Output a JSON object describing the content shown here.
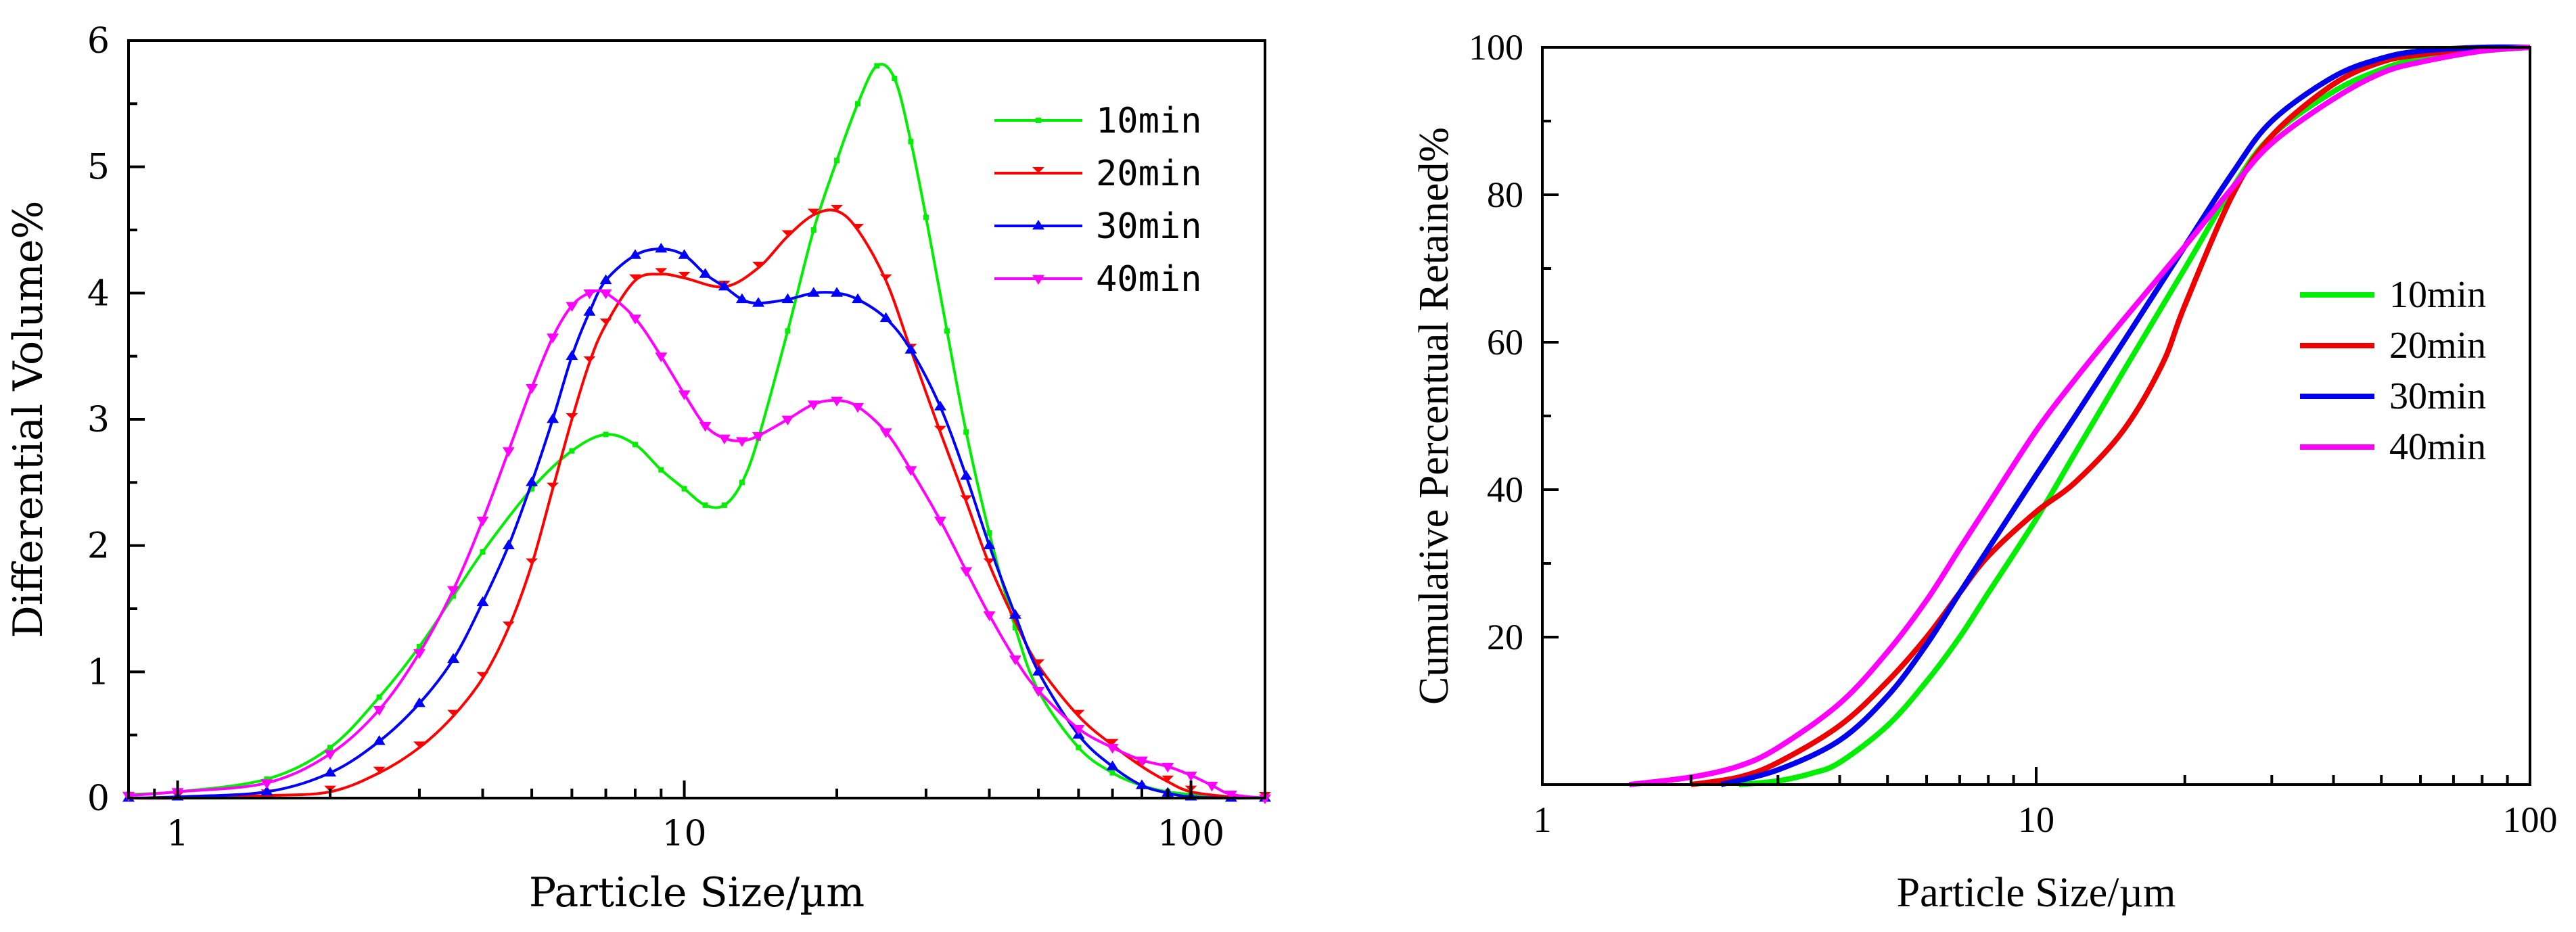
{
  "chart_data": [
    {
      "type": "line",
      "title": "",
      "xlabel": "Particle Size/µm",
      "ylabel": "Differential Volume%",
      "xscale": "log",
      "xlim": [
        0.8,
        140
      ],
      "ylim": [
        0,
        6
      ],
      "xticks": [
        1,
        10,
        100
      ],
      "xtick_labels": [
        "1",
        "10",
        "100"
      ],
      "yticks": [
        0,
        1,
        2,
        3,
        4,
        5,
        6
      ],
      "ytick_labels": [
        "0",
        "1",
        "2",
        "3",
        "4",
        "5",
        "6"
      ],
      "legend_position": "top-right",
      "markers": true,
      "series": [
        {
          "name": "10min",
          "color": "#00ee00",
          "x": [
            0.8,
            1,
            1.5,
            2,
            2.5,
            3,
            3.5,
            4,
            5,
            6,
            7,
            8,
            9,
            10,
            11,
            12,
            13,
            14,
            16,
            18,
            20,
            22,
            24,
            26,
            28,
            30,
            33,
            36,
            40,
            45,
            50,
            60,
            70,
            80,
            90,
            100,
            120,
            140
          ],
          "y": [
            0.03,
            0.05,
            0.15,
            0.4,
            0.8,
            1.2,
            1.6,
            1.95,
            2.45,
            2.75,
            2.88,
            2.8,
            2.6,
            2.45,
            2.32,
            2.32,
            2.5,
            2.85,
            3.7,
            4.5,
            5.05,
            5.5,
            5.8,
            5.7,
            5.2,
            4.6,
            3.7,
            2.9,
            2.1,
            1.35,
            0.85,
            0.4,
            0.2,
            0.1,
            0.05,
            0.03,
            0.01,
            0.0
          ]
        },
        {
          "name": "20min",
          "color": "#ff0000",
          "x": [
            0.8,
            1,
            1.5,
            2,
            2.5,
            3,
            3.5,
            4,
            4.5,
            5,
            5.5,
            6,
            6.5,
            7,
            8,
            9,
            10,
            12,
            14,
            16,
            18,
            20,
            22,
            25,
            28,
            32,
            36,
            40,
            45,
            50,
            60,
            70,
            80,
            90,
            100,
            120,
            140
          ],
          "y": [
            0.0,
            0.0,
            0.02,
            0.05,
            0.2,
            0.4,
            0.65,
            0.95,
            1.35,
            1.85,
            2.45,
            3.0,
            3.45,
            3.75,
            4.1,
            4.15,
            4.12,
            4.05,
            4.2,
            4.45,
            4.62,
            4.65,
            4.5,
            4.1,
            3.55,
            2.9,
            2.35,
            1.85,
            1.4,
            1.05,
            0.65,
            0.42,
            0.25,
            0.13,
            0.05,
            0.01,
            0.0
          ]
        },
        {
          "name": "30min",
          "color": "#0000ff",
          "x": [
            0.8,
            1,
            1.5,
            2,
            2.5,
            3,
            3.5,
            4,
            4.5,
            5,
            5.5,
            6,
            6.5,
            7,
            8,
            9,
            10,
            11,
            12,
            13,
            14,
            16,
            18,
            20,
            22,
            25,
            28,
            32,
            36,
            40,
            45,
            50,
            60,
            70,
            80,
            90,
            100,
            120,
            140
          ],
          "y": [
            0.0,
            0.01,
            0.05,
            0.2,
            0.45,
            0.75,
            1.1,
            1.55,
            2.0,
            2.5,
            3.0,
            3.5,
            3.85,
            4.1,
            4.3,
            4.35,
            4.3,
            4.15,
            4.05,
            3.95,
            3.92,
            3.95,
            4.0,
            4.0,
            3.95,
            3.8,
            3.55,
            3.1,
            2.55,
            2.0,
            1.45,
            1.0,
            0.5,
            0.25,
            0.1,
            0.04,
            0.01,
            0.0,
            0.0
          ]
        },
        {
          "name": "40min",
          "color": "#ff00ff",
          "x": [
            0.8,
            1,
            1.5,
            2,
            2.5,
            3,
            3.5,
            4,
            4.5,
            5,
            5.5,
            6,
            6.5,
            7,
            8,
            9,
            10,
            11,
            12,
            13,
            14,
            16,
            18,
            20,
            22,
            25,
            28,
            32,
            36,
            40,
            45,
            50,
            60,
            70,
            80,
            90,
            100,
            110,
            120,
            140
          ],
          "y": [
            0.02,
            0.05,
            0.12,
            0.35,
            0.7,
            1.15,
            1.65,
            2.2,
            2.75,
            3.25,
            3.65,
            3.9,
            4.0,
            4.0,
            3.8,
            3.5,
            3.2,
            2.95,
            2.85,
            2.83,
            2.87,
            3.0,
            3.12,
            3.15,
            3.1,
            2.9,
            2.6,
            2.2,
            1.8,
            1.45,
            1.1,
            0.85,
            0.55,
            0.4,
            0.3,
            0.25,
            0.18,
            0.1,
            0.03,
            0.0
          ]
        }
      ]
    },
    {
      "type": "line",
      "title": "",
      "xlabel": "Particle Size/µm",
      "ylabel": "Cumulative Percentual Retained%",
      "xscale": "log",
      "xlim": [
        1,
        100
      ],
      "ylim": [
        0,
        100
      ],
      "xticks": [
        1,
        10,
        100
      ],
      "xtick_labels": [
        "1",
        "10",
        "100"
      ],
      "yticks": [
        20,
        40,
        60,
        80,
        100
      ],
      "ytick_labels": [
        "20",
        "40",
        "60",
        "80",
        "100"
      ],
      "legend_position": "center-right",
      "markers": false,
      "series": [
        {
          "name": "10min",
          "color": "#00ee00",
          "x": [
            2.5,
            3,
            3.5,
            4,
            5,
            6,
            7,
            8,
            10,
            12,
            15,
            20,
            25,
            30,
            40,
            50,
            60,
            80,
            100
          ],
          "y": [
            0,
            0.5,
            1.5,
            3,
            8,
            14,
            20,
            26,
            36,
            45,
            56,
            70,
            81,
            88,
            94,
            97,
            98.5,
            99.5,
            100
          ]
        },
        {
          "name": "20min",
          "color": "#ee0000",
          "x": [
            2,
            2.5,
            3,
            4,
            5,
            6,
            7,
            8,
            10,
            12,
            15,
            18,
            20,
            25,
            30,
            40,
            50,
            60,
            80,
            100
          ],
          "y": [
            0,
            1,
            3,
            8,
            14,
            20,
            26,
            31,
            37,
            41,
            48,
            57,
            65,
            80,
            88,
            95,
            98,
            99,
            99.8,
            100
          ]
        },
        {
          "name": "30min",
          "color": "#0000ee",
          "x": [
            2.3,
            3,
            4,
            5,
            6,
            7,
            8,
            10,
            12,
            15,
            20,
            25,
            30,
            40,
            50,
            60,
            80,
            100
          ],
          "y": [
            0,
            2,
            6,
            12,
            19,
            26,
            32,
            42,
            50,
            60,
            73,
            83,
            90,
            96,
            98.5,
            99.5,
            100,
            100
          ]
        },
        {
          "name": "40min",
          "color": "#ff00ff",
          "x": [
            1.5,
            2,
            2.5,
            3,
            4,
            5,
            6,
            7,
            8,
            10,
            12,
            15,
            20,
            25,
            30,
            40,
            50,
            60,
            80,
            100
          ],
          "y": [
            0,
            1,
            2.5,
            5,
            11,
            18,
            25,
            32,
            38,
            48,
            55,
            63,
            73,
            81,
            87,
            93,
            96.5,
            98,
            99.5,
            100
          ]
        }
      ]
    }
  ]
}
